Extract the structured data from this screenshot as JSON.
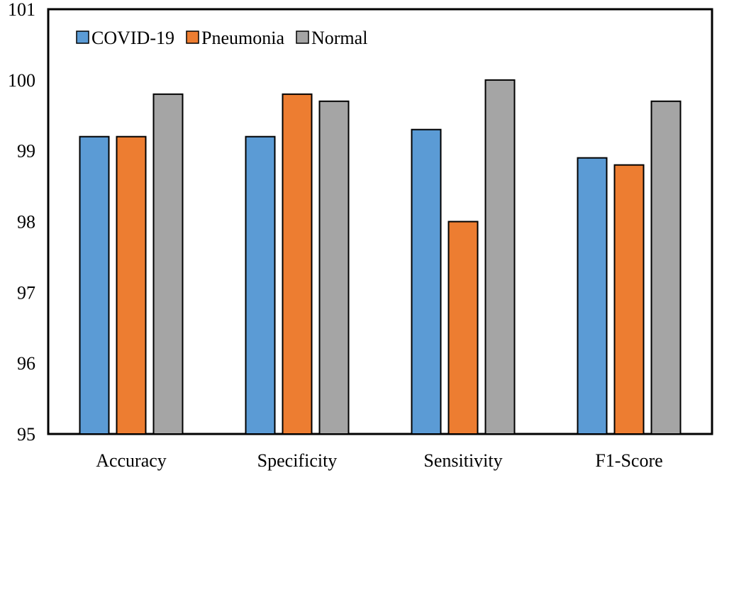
{
  "chart_data": {
    "type": "bar",
    "categories": [
      "Accuracy",
      "Specificity",
      "Sensitivity",
      "F1-Score"
    ],
    "series": [
      {
        "name": "COVID-19",
        "color": "#5b9bd5",
        "values": [
          99.2,
          99.2,
          99.3,
          98.9
        ]
      },
      {
        "name": "Pneumonia",
        "color": "#ed7d31",
        "values": [
          99.2,
          99.8,
          98.0,
          98.8
        ]
      },
      {
        "name": "Normal",
        "color": "#a5a5a5",
        "values": [
          99.8,
          99.7,
          100.0,
          99.7
        ]
      }
    ],
    "ylim": [
      95,
      101
    ],
    "yticks": [
      95,
      96,
      97,
      98,
      99,
      100,
      101
    ],
    "grid": false,
    "legend_position": "top-left"
  }
}
